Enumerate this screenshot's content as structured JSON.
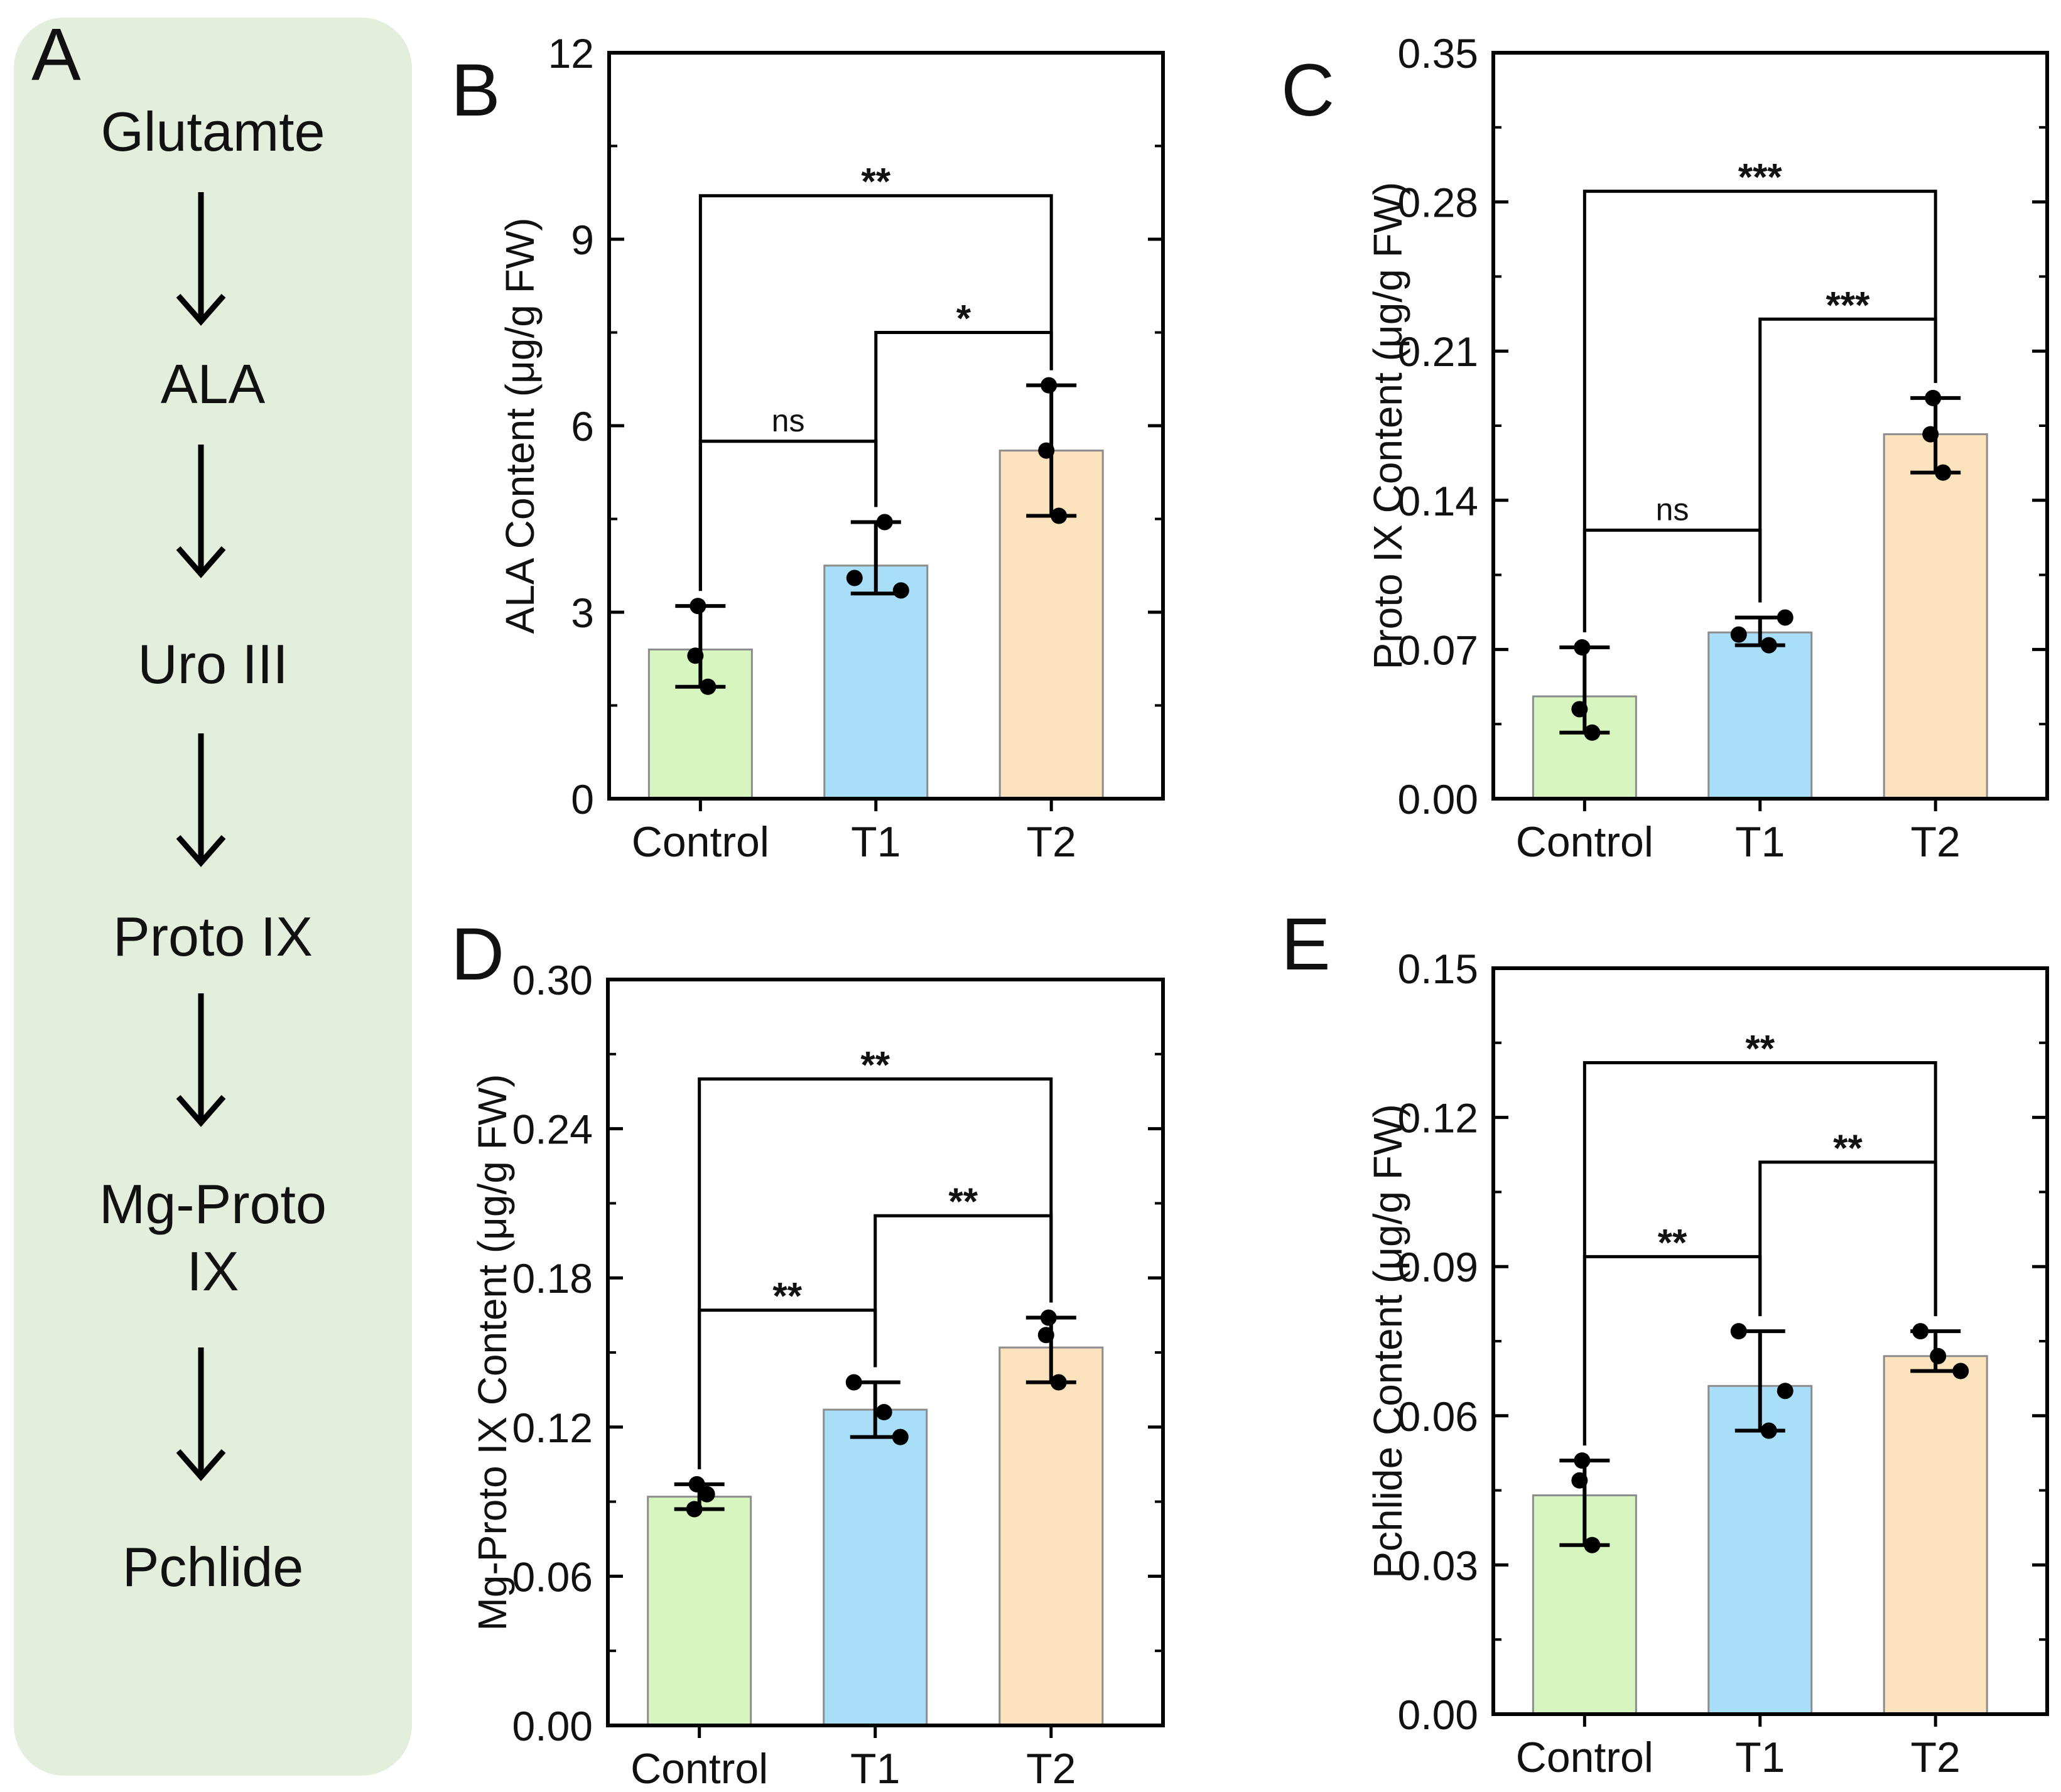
{
  "pathway": {
    "panel_label": "A",
    "steps": [
      "Glutamte",
      "ALA",
      "Uro III",
      "Proto IX",
      "Mg-Proto\nIX",
      "Pchlide"
    ]
  },
  "colors": {
    "Control": "#d7f5bf",
    "T1": "#a8def7",
    "T2": "#fde3bd",
    "bar_stroke": "#8c8c8c",
    "axis": "#000000",
    "point": "#000000",
    "pathway_bg": "#e3efdc"
  },
  "chart_data": [
    {
      "panel": "B",
      "type": "bar",
      "categories": [
        "Control",
        "T1",
        "T2"
      ],
      "values": [
        2.4,
        3.75,
        5.6
      ],
      "errors": [
        [
          1.8,
          3.1
        ],
        [
          3.3,
          4.45
        ],
        [
          4.55,
          6.65
        ]
      ],
      "points": [
        [
          3.1,
          2.3,
          1.8
        ],
        [
          3.55,
          3.35,
          4.45
        ],
        [
          6.65,
          5.6,
          4.55
        ]
      ],
      "ylabel": "ALA Content (μg/g FW)",
      "ylim": [
        0,
        12
      ],
      "yticks": [
        "0",
        "3",
        "6",
        "9",
        "12"
      ],
      "brackets": [
        {
          "from": 0,
          "to": 1,
          "y": 5.75,
          "label": "ns"
        },
        {
          "from": 1,
          "to": 2,
          "y": 7.5,
          "label": "*"
        },
        {
          "from": 0,
          "to": 2,
          "y": 9.7,
          "label": "**"
        }
      ]
    },
    {
      "panel": "C",
      "type": "bar",
      "categories": [
        "Control",
        "T1",
        "T2"
      ],
      "values": [
        0.048,
        0.078,
        0.171
      ],
      "errors": [
        [
          0.031,
          0.071
        ],
        [
          0.072,
          0.085
        ],
        [
          0.153,
          0.188
        ]
      ],
      "points": [
        [
          0.071,
          0.042,
          0.031
        ],
        [
          0.077,
          0.085,
          0.072
        ],
        [
          0.188,
          0.171,
          0.153
        ]
      ],
      "ylabel": "Proto IX Content (μg/g FW)",
      "ylim": [
        0,
        0.35
      ],
      "yticks": [
        "0.00",
        "0.07",
        "0.14",
        "0.21",
        "0.28",
        "0.35"
      ],
      "brackets": [
        {
          "from": 0,
          "to": 1,
          "y": 0.126,
          "label": "ns"
        },
        {
          "from": 1,
          "to": 2,
          "y": 0.225,
          "label": "***"
        },
        {
          "from": 0,
          "to": 2,
          "y": 0.285,
          "label": "***"
        }
      ]
    },
    {
      "panel": "D",
      "type": "bar",
      "categories": [
        "Control",
        "T1",
        "T2"
      ],
      "values": [
        0.092,
        0.127,
        0.152
      ],
      "errors": [
        [
          0.087,
          0.097
        ],
        [
          0.116,
          0.138
        ],
        [
          0.138,
          0.164
        ]
      ],
      "points": [
        [
          0.097,
          0.087,
          0.093
        ],
        [
          0.138,
          0.116,
          0.126
        ],
        [
          0.164,
          0.157,
          0.138
        ]
      ],
      "ylabel": "Mg-Proto IX Content (μg/g FW)",
      "ylim": [
        0,
        0.3
      ],
      "yticks": [
        "0.00",
        "0.06",
        "0.12",
        "0.18",
        "0.24",
        "0.30"
      ],
      "brackets": [
        {
          "from": 0,
          "to": 1,
          "y": 0.167,
          "label": "**"
        },
        {
          "from": 1,
          "to": 2,
          "y": 0.205,
          "label": "**"
        },
        {
          "from": 0,
          "to": 2,
          "y": 0.26,
          "label": "**"
        }
      ]
    },
    {
      "panel": "E",
      "type": "bar",
      "categories": [
        "Control",
        "T1",
        "T2"
      ],
      "values": [
        0.044,
        0.066,
        0.072
      ],
      "errors": [
        [
          0.034,
          0.051
        ],
        [
          0.057,
          0.077
        ],
        [
          0.069,
          0.077
        ]
      ],
      "points": [
        [
          0.051,
          0.047,
          0.034
        ],
        [
          0.077,
          0.065,
          0.057
        ],
        [
          0.077,
          0.069,
          0.072
        ]
      ],
      "ylabel": "Pchlide Content (μg/g FW)",
      "ylim": [
        0,
        0.15
      ],
      "yticks": [
        "0.00",
        "0.03",
        "0.06",
        "0.09",
        "0.12",
        "0.15"
      ],
      "brackets": [
        {
          "from": 0,
          "to": 1,
          "y": 0.092,
          "label": "**"
        },
        {
          "from": 1,
          "to": 2,
          "y": 0.111,
          "label": "**"
        },
        {
          "from": 0,
          "to": 2,
          "y": 0.131,
          "label": "**"
        }
      ]
    }
  ]
}
